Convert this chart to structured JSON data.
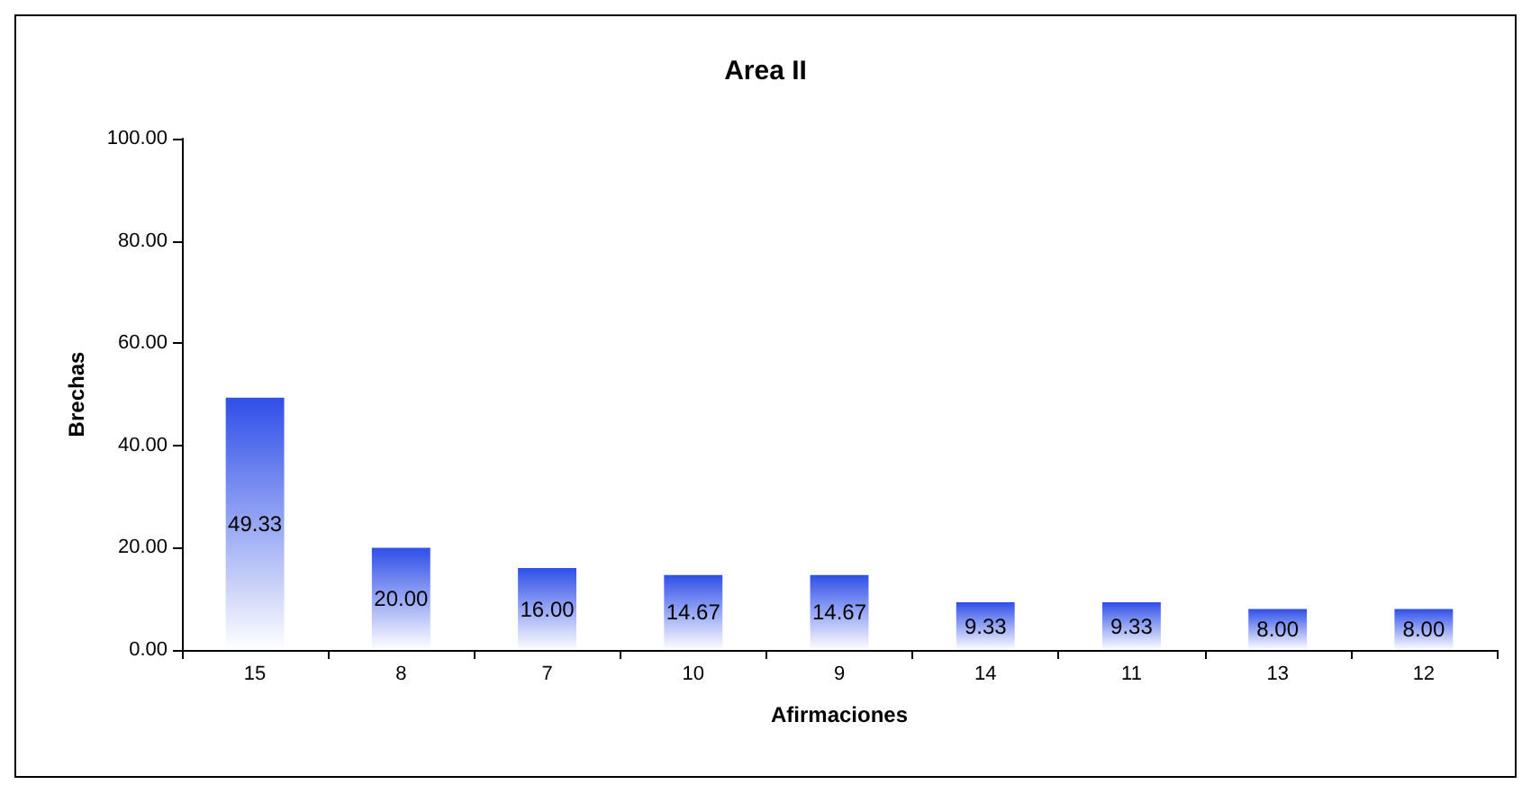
{
  "chart_data": {
    "type": "bar",
    "title": "Area II",
    "xlabel": "Afirmaciones",
    "ylabel": "Brechas",
    "categories": [
      "15",
      "8",
      "7",
      "10",
      "9",
      "14",
      "11",
      "13",
      "12"
    ],
    "values": [
      49.33,
      20.0,
      16.0,
      14.67,
      14.67,
      9.33,
      9.33,
      8.0,
      8.0
    ],
    "value_labels": [
      "49.33",
      "20.00",
      "16.00",
      "14.67",
      "14.67",
      "9.33",
      "9.33",
      "8.00",
      "8.00"
    ],
    "color": "#2f4fe8",
    "ylim": [
      0,
      100
    ],
    "yticks": [
      {
        "value": 0,
        "label": "0.00"
      },
      {
        "value": 20,
        "label": "20.00"
      },
      {
        "value": 40,
        "label": "40.00"
      },
      {
        "value": 60,
        "label": "60.00"
      },
      {
        "value": 80,
        "label": "80.00"
      },
      {
        "value": 100,
        "label": "100.00"
      }
    ],
    "grid": false
  }
}
